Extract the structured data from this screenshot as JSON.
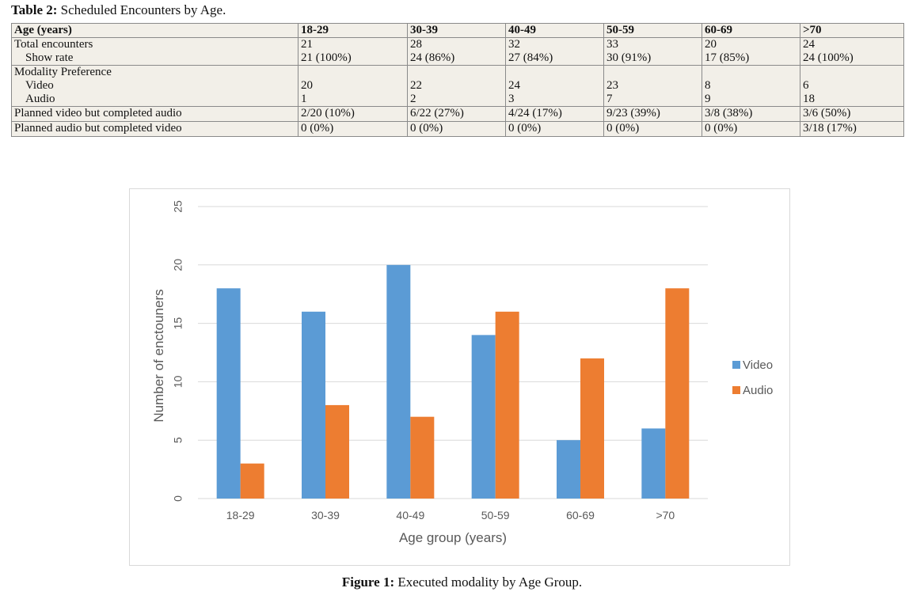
{
  "table": {
    "caption_label": "Table 2:",
    "caption_text": " Scheduled Encounters by Age.",
    "header": [
      "Age (years)",
      "18-29",
      "30-39",
      "40-49",
      "50-59",
      "60-69",
      ">70"
    ],
    "rows": {
      "total": {
        "label": "Total encounters",
        "values": [
          "21",
          "28",
          "32",
          "33",
          "20",
          "24"
        ]
      },
      "show": {
        "label": "Show rate",
        "values": [
          "21 (100%)",
          "24 (86%)",
          "27 (84%)",
          "30 (91%)",
          "17 (85%)",
          "24 (100%)"
        ]
      },
      "modality": {
        "label": "Modality Preference"
      },
      "video": {
        "label": "Video",
        "values": [
          "20",
          "22",
          "24",
          "23",
          "8",
          "6"
        ]
      },
      "audio": {
        "label": "Audio",
        "values": [
          "1",
          "2",
          "3",
          "7",
          "9",
          "18"
        ]
      },
      "pv_ca": {
        "label": "Planned video but completed audio",
        "values": [
          "2/20 (10%)",
          "6/22 (27%)",
          "4/24 (17%)",
          "9/23 (39%)",
          "3/8 (38%)",
          "3/6 (50%)"
        ]
      },
      "pa_cv": {
        "label": "Planned audio but completed video",
        "values": [
          "0 (0%)",
          "0 (0%)",
          "0 (0%)",
          "0 (0%)",
          "0 (0%)",
          "3/18 (17%)"
        ]
      }
    }
  },
  "chart_data": {
    "type": "bar",
    "categories": [
      "18-29",
      "30-39",
      "40-49",
      "50-59",
      "60-69",
      ">70"
    ],
    "series": [
      {
        "name": "Video",
        "values": [
          18,
          16,
          20,
          14,
          5,
          6
        ],
        "color": "#5b9bd5"
      },
      {
        "name": "Audio",
        "values": [
          3,
          8,
          7,
          16,
          12,
          18
        ],
        "color": "#ed7d31"
      }
    ],
    "xlabel": "Age group (years)",
    "ylabel": "Number of enctouners",
    "ylim": [
      0,
      25
    ],
    "yticks": [
      "0",
      "5",
      "10",
      "15",
      "20",
      "25"
    ],
    "grid": true,
    "legend": "right"
  },
  "figure": {
    "caption_label": "Figure 1:",
    "caption_text": " Executed modality by Age Group."
  }
}
